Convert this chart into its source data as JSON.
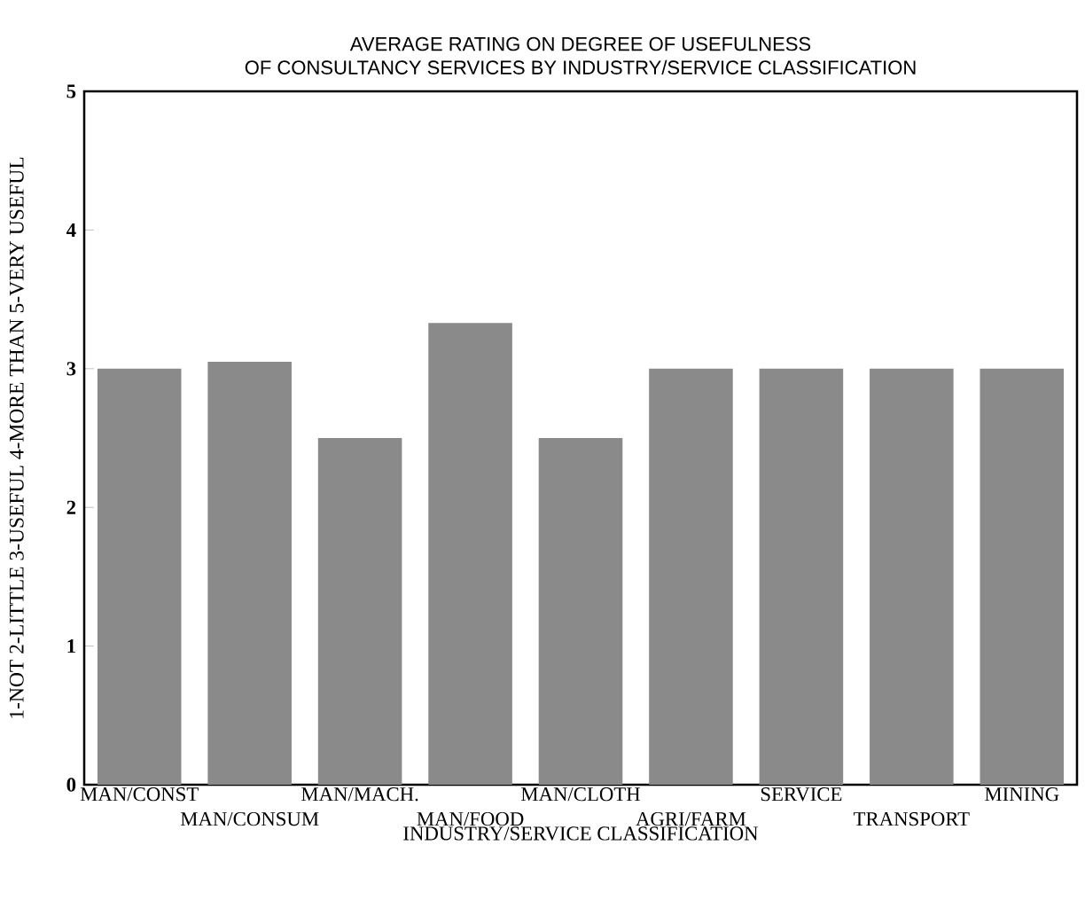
{
  "chart_data": {
    "type": "bar",
    "title": "AVERAGE RATING ON DEGREE OF USEFULNESS\nOF CONSULTANCY SERVICES BY INDUSTRY/SERVICE CLASSIFICATION",
    "xlabel": "INDUSTRY/SERVICE CLASSIFICATION",
    "ylabel": "1-NOT 2-LITTLE 3-USEFUL 4-MORE THAN 5-VERY USEFUL",
    "categories": [
      "MAN/CONST",
      "MAN/CONSUM",
      "MAN/MACH.",
      "MAN/FOOD",
      "MAN/CLOTH",
      "AGRI/FARM",
      "SERVICE",
      "TRANSPORT",
      "MINING"
    ],
    "values": [
      3,
      3.05,
      2.5,
      3.33,
      2.5,
      3,
      3,
      3,
      3
    ],
    "color": "#8a8a8a",
    "ylim": [
      0,
      5
    ],
    "yticks": [
      0,
      1,
      2,
      3,
      4,
      5
    ],
    "grid": false
  }
}
